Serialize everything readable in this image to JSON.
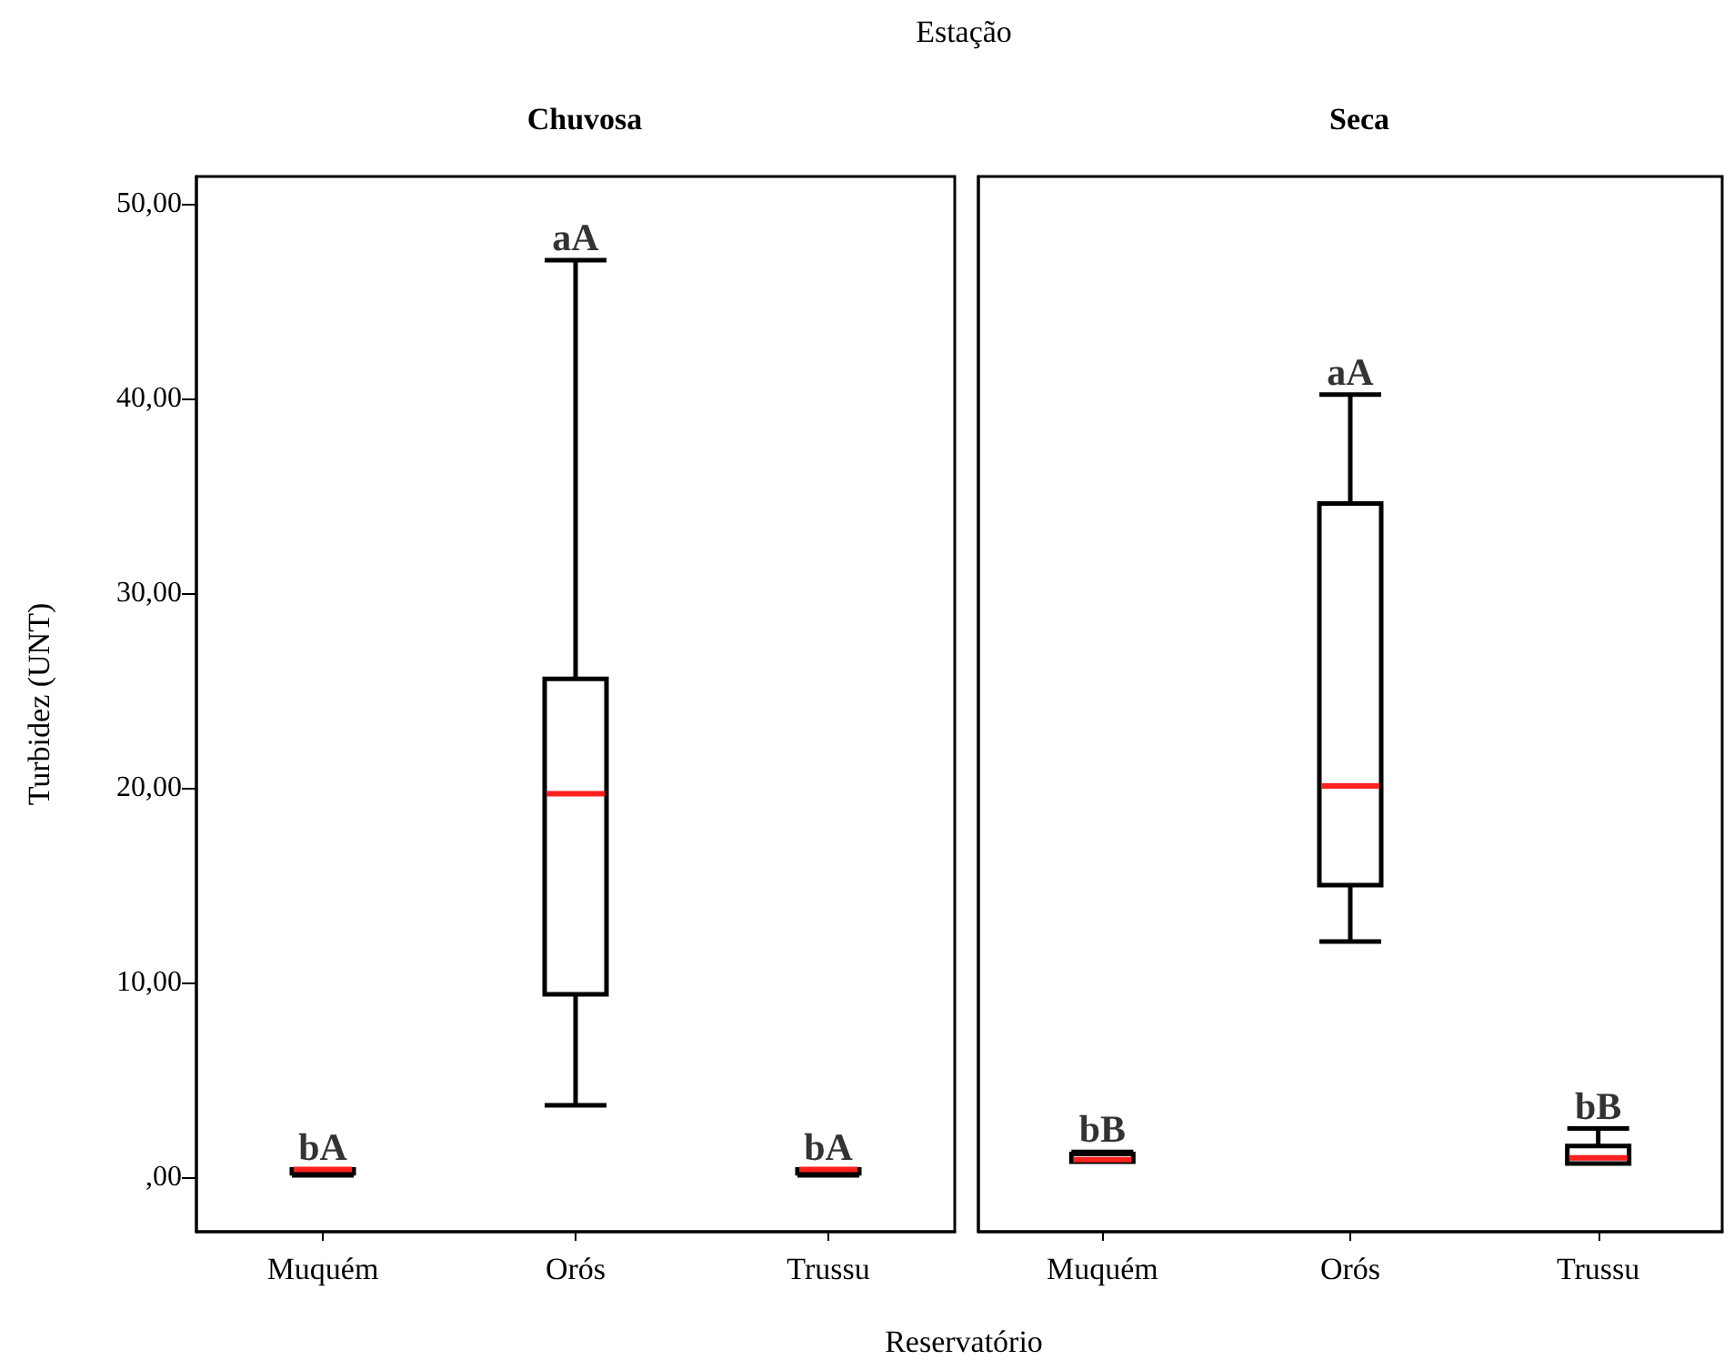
{
  "chart_data": [
    {
      "type": "box",
      "title": "Chuvosa",
      "ylabel": "Turbidez (UNT)",
      "xlabel": "Reservatório",
      "categories": [
        "Muquém",
        "Orós",
        "Trussu"
      ],
      "ylim": [
        -2.8,
        51.4
      ],
      "yticks": [
        {
          "value": 0,
          "label": ",00"
        },
        {
          "value": 10,
          "label": "10,00"
        },
        {
          "value": 20,
          "label": "20,00"
        },
        {
          "value": 30,
          "label": "30,00"
        },
        {
          "value": 40,
          "label": "40,00"
        },
        {
          "value": 50,
          "label": "50,00"
        }
      ],
      "grid": false,
      "series": [
        {
          "color": "#000000",
          "boxes": [
            {
              "low": 0.1,
              "q1": 0.2,
              "median": 0.4,
              "q3": 0.4,
              "high": 0.4
            },
            {
              "low": 3.7,
              "q1": 9.4,
              "median": 19.7,
              "q3": 25.6,
              "high": 47.1
            },
            {
              "low": 0.1,
              "q1": 0.2,
              "median": 0.4,
              "q3": 0.4,
              "high": 0.4
            }
          ]
        }
      ],
      "annotations": [
        "Estação",
        {
          "text": "bA",
          "x": "Muquém",
          "y": 0.4
        },
        {
          "text": "aA",
          "x": "Orós",
          "y": 47.1
        },
        {
          "text": "bA",
          "x": "Trussu",
          "y": 0.4
        }
      ]
    },
    {
      "type": "box",
      "title": "Seca",
      "categories": [
        "Muquém",
        "Orós",
        "Trussu"
      ],
      "tick_labels": "x",
      "ylim": [
        -2.8,
        51.4
      ],
      "grid": false,
      "series": [
        {
          "color": "#000000",
          "boxes": [
            {
              "low": 0.8,
              "q1": 0.8,
              "median": 0.9,
              "q3": 1.2,
              "high": 1.3
            },
            {
              "low": 12.1,
              "q1": 15.0,
              "median": 20.1,
              "q3": 34.6,
              "high": 40.2
            },
            {
              "low": 0.7,
              "q1": 0.7,
              "median": 1.0,
              "q3": 1.6,
              "high": 2.5
            }
          ]
        }
      ],
      "annotations": [
        {
          "text": "bB",
          "x": "Muquém",
          "y": 1.3
        },
        {
          "text": "aA",
          "x": "Orós",
          "y": 40.2
        },
        {
          "text": "bB",
          "x": "Trussu",
          "y": 2.5
        }
      ]
    }
  ]
}
